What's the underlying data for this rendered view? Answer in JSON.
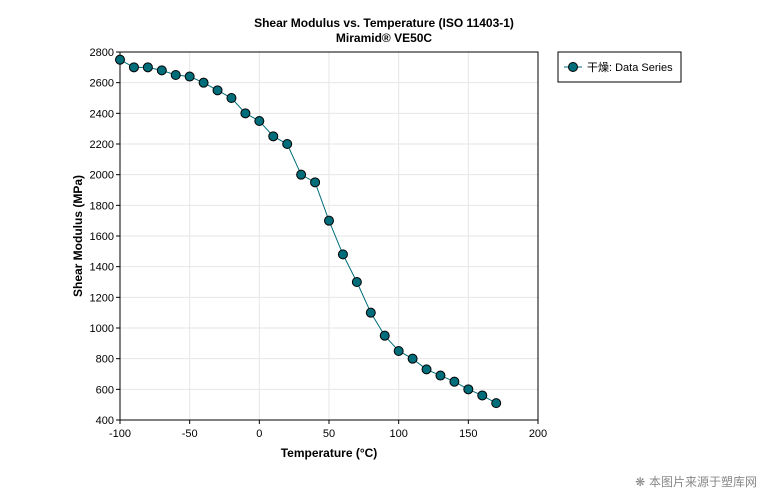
{
  "chart_data": {
    "type": "line",
    "title": "Shear Modulus vs. Temperature (ISO 11403-1)",
    "subtitle": "Miramid® VE50C",
    "xlabel": "Temperature (°C)",
    "ylabel": "Shear Modulus (MPa)",
    "xlim": [
      -100,
      200
    ],
    "ylim": [
      400,
      2800
    ],
    "xticks": [
      -100,
      -50,
      0,
      50,
      100,
      150,
      200
    ],
    "yticks": [
      400,
      600,
      800,
      1000,
      1200,
      1400,
      1600,
      1800,
      2000,
      2200,
      2400,
      2600,
      2800
    ],
    "grid": true,
    "legend_position": "top-right-outside",
    "series": [
      {
        "name": "干燥: Data Series",
        "color": "#006d7a",
        "marker": "circle",
        "x": [
          -100,
          -90,
          -80,
          -70,
          -60,
          -50,
          -40,
          -30,
          -20,
          -10,
          0,
          10,
          20,
          30,
          40,
          50,
          60,
          70,
          80,
          90,
          100,
          110,
          120,
          130,
          140,
          150,
          160,
          170
        ],
        "y": [
          2750,
          2700,
          2700,
          2680,
          2650,
          2640,
          2600,
          2550,
          2500,
          2400,
          2350,
          2250,
          2200,
          2000,
          1950,
          1700,
          1480,
          1300,
          1100,
          950,
          850,
          800,
          730,
          690,
          650,
          600,
          560,
          510
        ]
      }
    ]
  },
  "watermark": "本图片来源于塑库网"
}
